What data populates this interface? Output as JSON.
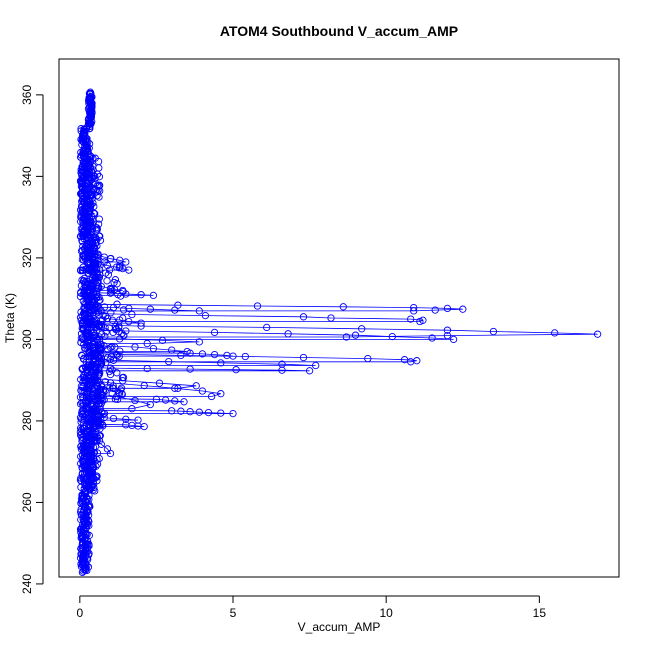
{
  "chart_data": {
    "type": "scatter",
    "title": "ATOM4 Southbound V_accum_AMP",
    "xlabel": "V_accum_AMP",
    "ylabel": "Theta (K)",
    "xlim": [
      -0.68,
      17.6
    ],
    "ylim": [
      241.7,
      368.8
    ],
    "xticks": [
      0,
      5,
      10,
      15
    ],
    "yticks": [
      240,
      260,
      280,
      300,
      320,
      340,
      360
    ],
    "marker": "open-circle",
    "connected": true,
    "grid": false,
    "legend": "none",
    "colors": {
      "points": "#0000ff",
      "line": "#0000ff"
    },
    "excursions": [
      {
        "theta_start": 308.6,
        "theta_end": 307.0,
        "values": [
          3.2,
          5.8,
          8.6,
          10.9,
          12.0,
          12.5,
          11.6,
          10.9
        ]
      },
      {
        "theta_start": 306.4,
        "theta_end": 304.4,
        "values": [
          1.7,
          4.1,
          7.3,
          8.2,
          10.8,
          11.2,
          11.1
        ]
      },
      {
        "theta_start": 303.6,
        "theta_end": 300.6,
        "values": [
          2.0,
          6.1,
          9.2,
          12.0,
          13.5,
          15.5,
          16.9,
          12.0,
          8.7
        ]
      },
      {
        "theta_start": 302.4,
        "theta_end": 300.0,
        "values": [
          1.5,
          4.4,
          6.8,
          9.0,
          10.2,
          11.5,
          12.2
        ]
      },
      {
        "theta_start": 296.6,
        "theta_end": 294.5,
        "values": [
          1.2,
          3.3,
          5.4,
          7.3,
          9.4,
          10.6,
          11.0,
          10.8
        ]
      },
      {
        "theta_start": 295.2,
        "theta_end": 293.6,
        "values": [
          1.1,
          2.9,
          4.6,
          6.6,
          7.7
        ]
      },
      {
        "theta_start": 293.1,
        "theta_end": 292.3,
        "values": [
          1.0,
          2.2,
          3.6,
          5.1,
          6.6,
          7.5
        ]
      },
      {
        "theta_start": 296.8,
        "theta_end": 295.9,
        "values": [
          3.6,
          4.0,
          4.4,
          4.8,
          5.0
        ]
      },
      {
        "theta_start": 282.6,
        "theta_end": 281.8,
        "values": [
          3.0,
          3.3,
          3.6,
          3.9,
          4.2,
          4.6,
          5.0
        ]
      },
      {
        "theta_start": 285.5,
        "theta_end": 284.7,
        "values": [
          2.5,
          2.8,
          3.1,
          3.4
        ]
      },
      {
        "theta_start": 279.2,
        "theta_end": 278.6,
        "values": [
          1.5,
          1.7,
          1.9,
          2.1
        ]
      },
      {
        "theta_start": 290.0,
        "theta_end": 286.0,
        "values": [
          1.0,
          2.1,
          3.1,
          4.0,
          4.6,
          4.3
        ]
      },
      {
        "theta_start": 298.5,
        "theta_end": 297.0,
        "values": [
          1.8,
          2.4,
          3.0,
          3.5
        ]
      },
      {
        "theta_start": 318.5,
        "theta_end": 317.0,
        "values": [
          0.9,
          1.2,
          1.4,
          1.6
        ]
      },
      {
        "theta_start": 311.5,
        "theta_end": 310.8,
        "values": [
          1.0,
          1.5,
          2.0,
          2.4
        ]
      },
      {
        "theta_start": 305.5,
        "theta_end": 304.0,
        "values": [
          0.9,
          1.3,
          1.6,
          2.0
        ]
      },
      {
        "theta_start": 290.5,
        "theta_end": 288.0,
        "values": [
          1.4,
          2.6,
          3.8,
          3.2
        ]
      },
      {
        "theta_start": 287.0,
        "theta_end": 283.0,
        "values": [
          1.2,
          1.8,
          2.3,
          1.7
        ]
      },
      {
        "theta_start": 281.0,
        "theta_end": 280.2,
        "values": [
          0.8,
          1.1,
          1.5,
          1.9
        ]
      },
      {
        "theta_start": 276.5,
        "theta_end": 272.0,
        "values": [
          0.5,
          0.7,
          0.9,
          1.0
        ]
      },
      {
        "theta_start": 300.5,
        "theta_end": 299.0,
        "values": [
          1.3,
          2.7,
          3.9,
          2.2
        ]
      },
      {
        "theta_start": 308.0,
        "theta_end": 307.0,
        "values": [
          1.1,
          1.6,
          2.3,
          3.1,
          3.9
        ]
      },
      {
        "theta_start": 321.0,
        "theta_end": 319.0,
        "values": [
          0.6,
          0.8,
          1.0,
          1.3,
          1.5
        ]
      },
      {
        "theta_start": 313.5,
        "theta_end": 312.0,
        "values": [
          0.7,
          1.0,
          1.4
        ]
      }
    ]
  }
}
